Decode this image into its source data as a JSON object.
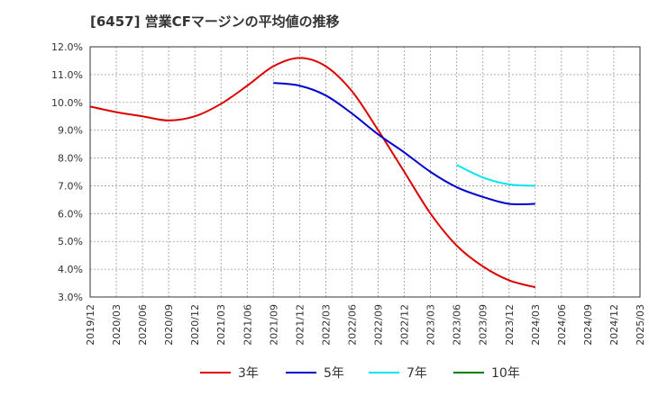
{
  "chart_data": {
    "type": "line",
    "title": "[6457]  営業CFマージンの平均値の推移",
    "xlabel": "",
    "ylabel": "",
    "ylim": [
      3.0,
      12.0
    ],
    "y_ticks": [
      "3.0%",
      "4.0%",
      "5.0%",
      "6.0%",
      "7.0%",
      "8.0%",
      "9.0%",
      "10.0%",
      "11.0%",
      "12.0%"
    ],
    "x_ticks": [
      "2019/12",
      "2020/03",
      "2020/06",
      "2020/09",
      "2020/12",
      "2021/03",
      "2021/06",
      "2021/09",
      "2021/12",
      "2022/03",
      "2022/06",
      "2022/09",
      "2022/12",
      "2023/03",
      "2023/06",
      "2023/09",
      "2023/12",
      "2024/03",
      "2024/06",
      "2024/09",
      "2024/12",
      "2025/03"
    ],
    "grid": true,
    "legend_position": "bottom",
    "series": [
      {
        "name": "3年",
        "color": "#dd0000",
        "x": [
          "2019/12",
          "2020/03",
          "2020/06",
          "2020/09",
          "2020/12",
          "2021/03",
          "2021/06",
          "2021/09",
          "2021/12",
          "2022/03",
          "2022/06",
          "2022/09",
          "2022/12",
          "2023/03",
          "2023/06",
          "2023/09",
          "2023/12",
          "2024/03"
        ],
        "values": [
          9.85,
          9.65,
          9.5,
          9.35,
          9.5,
          9.95,
          10.6,
          11.3,
          11.6,
          11.3,
          10.4,
          9.0,
          7.5,
          6.0,
          4.85,
          4.1,
          3.6,
          3.35
        ]
      },
      {
        "name": "5年",
        "color": "#0000cc",
        "x": [
          "2021/09",
          "2021/12",
          "2022/03",
          "2022/06",
          "2022/09",
          "2022/12",
          "2023/03",
          "2023/06",
          "2023/09",
          "2023/12",
          "2024/03"
        ],
        "values": [
          10.7,
          10.6,
          10.25,
          9.6,
          8.85,
          8.2,
          7.5,
          6.95,
          6.6,
          6.35,
          6.35
        ]
      },
      {
        "name": "7年",
        "color": "#00e5ee",
        "x": [
          "2023/06",
          "2023/09",
          "2023/12",
          "2024/03"
        ],
        "values": [
          7.75,
          7.3,
          7.05,
          7.0
        ]
      },
      {
        "name": "10年",
        "color": "#008000",
        "x": [],
        "values": []
      }
    ]
  }
}
